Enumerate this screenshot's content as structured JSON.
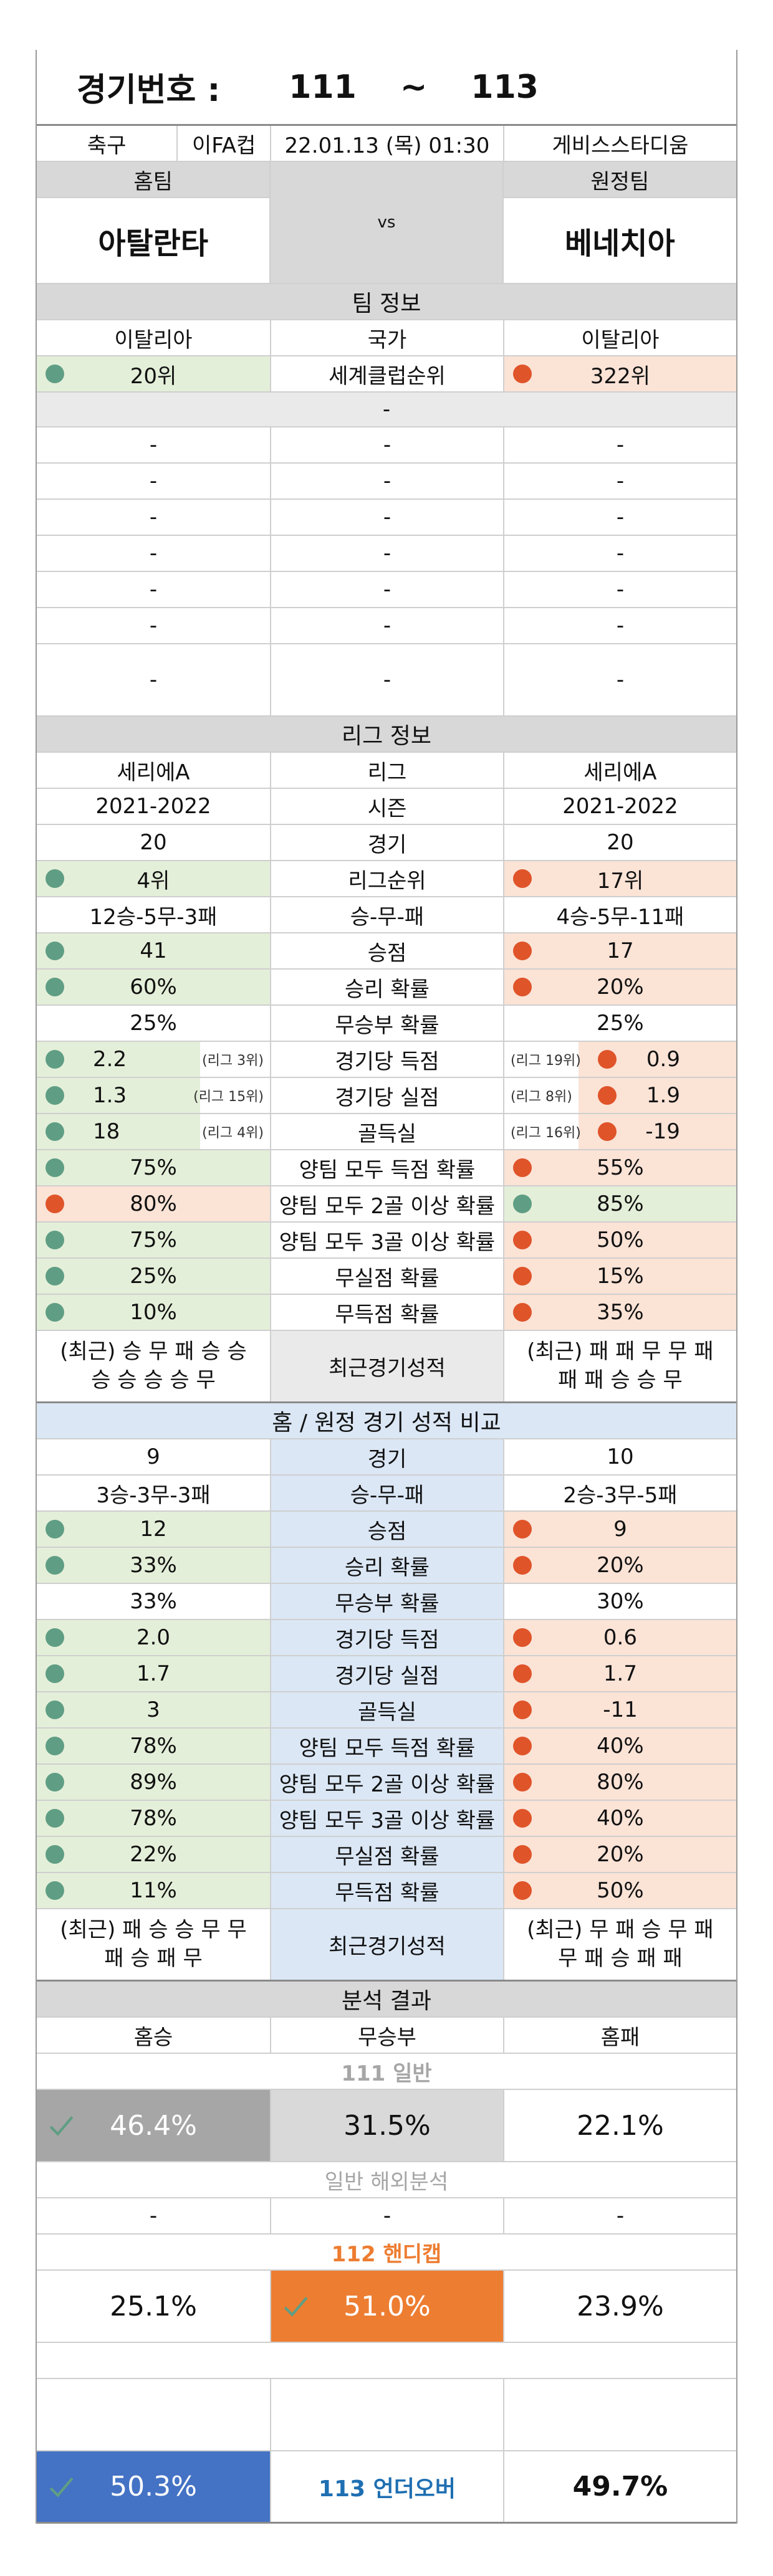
{
  "header": {
    "label": "경기번호 :",
    "from": "111",
    "sep": "~",
    "to": "113"
  },
  "match": {
    "sport": "축구",
    "league": "이FA컵",
    "datetime": "22.01.13 (목) 01:30",
    "stadium": "게비스스타디움"
  },
  "teams": {
    "home_label": "홈팀",
    "away_label": "원정팀",
    "home": "아탈란타",
    "vs": "vs",
    "away": "베네치아"
  },
  "team_info": {
    "title": "팀 정보",
    "country": {
      "home": "이탈리아",
      "label": "국가",
      "away": "이탈리아"
    },
    "club_rank": {
      "home": "20위",
      "label": "세계클럽순위",
      "away": "322위"
    },
    "dash": "-"
  },
  "league_info": {
    "title": "리그 정보",
    "league": {
      "home": "세리에A",
      "label": "리그",
      "away": "세리에A"
    },
    "season": {
      "home": "2021-2022",
      "label": "시즌",
      "away": "2021-2022"
    },
    "games": {
      "home": "20",
      "label": "경기",
      "away": "20"
    },
    "rank": {
      "home": "4위",
      "label": "리그순위",
      "away": "17위"
    },
    "record": {
      "home": "12승-5무-3패",
      "label": "승-무-패",
      "away": "4승-5무-11패"
    },
    "points": {
      "home": "41",
      "label": "승점",
      "away": "17"
    },
    "win_rate": {
      "home": "60%",
      "label": "승리 확률",
      "away": "20%"
    },
    "draw_rate": {
      "home": "25%",
      "label": "무승부 확률",
      "away": "25%"
    },
    "gf": {
      "home": "2.2",
      "home_sub": "(리그 3위)",
      "label": "경기당 득점",
      "away_sub": "(리그 19위)",
      "away": "0.9"
    },
    "ga": {
      "home": "1.3",
      "home_sub": "(리그 15위)",
      "label": "경기당 실점",
      "away_sub": "(리그 8위)",
      "away": "1.9"
    },
    "gd": {
      "home": "18",
      "home_sub": "(리그 4위)",
      "label": "골득실",
      "away_sub": "(리그 16위)",
      "away": "-19"
    },
    "btts": {
      "home": "75%",
      "label": "양팀 모두 득점 확률",
      "away": "55%"
    },
    "btts2": {
      "home": "80%",
      "label": "양팀 모두 2골 이상 확률",
      "away": "85%"
    },
    "btts3": {
      "home": "75%",
      "label": "양팀 모두 3골 이상 확률",
      "away": "50%"
    },
    "clean": {
      "home": "25%",
      "label": "무실점 확률",
      "away": "15%"
    },
    "noscore": {
      "home": "10%",
      "label": "무득점 확률",
      "away": "35%"
    },
    "recent": {
      "home_1": "(최근) 승 무 패 승 승",
      "home_2": "승 승 승 승 무",
      "label": "최근경기성적",
      "away_1": "(최근) 패 패 무 무 패",
      "away_2": "패 패 승 승 무"
    }
  },
  "venue_info": {
    "title": "홈 / 원정 경기 성적 비교",
    "games": {
      "home": "9",
      "label": "경기",
      "away": "10"
    },
    "record": {
      "home": "3승-3무-3패",
      "label": "승-무-패",
      "away": "2승-3무-5패"
    },
    "points": {
      "home": "12",
      "label": "승점",
      "away": "9"
    },
    "win_rate": {
      "home": "33%",
      "label": "승리 확률",
      "away": "20%"
    },
    "draw_rate": {
      "home": "33%",
      "label": "무승부 확률",
      "away": "30%"
    },
    "gf": {
      "home": "2.0",
      "label": "경기당 득점",
      "away": "0.6"
    },
    "ga": {
      "home": "1.7",
      "label": "경기당 실점",
      "away": "1.7"
    },
    "gd": {
      "home": "3",
      "label": "골득실",
      "away": "-11"
    },
    "btts": {
      "home": "78%",
      "label": "양팀 모두 득점 확률",
      "away": "40%"
    },
    "btts2": {
      "home": "89%",
      "label": "양팀 모두 2골 이상 확률",
      "away": "80%"
    },
    "btts3": {
      "home": "78%",
      "label": "양팀 모두 3골 이상 확률",
      "away": "40%"
    },
    "clean": {
      "home": "22%",
      "label": "무실점 확률",
      "away": "20%"
    },
    "noscore": {
      "home": "11%",
      "label": "무득점 확률",
      "away": "50%"
    },
    "recent": {
      "home_1": "(최근) 패 승 승 무 무",
      "home_2": "패 승 패 무",
      "label": "최근경기성적",
      "away_1": "(최근) 무 패 승 무 패",
      "away_2": "무 패 승 패 패"
    }
  },
  "analysis": {
    "title": "분석 결과",
    "col_home": "홈승",
    "col_draw": "무승부",
    "col_away": "홈패",
    "g111_label": "111 일반",
    "g111": {
      "home": "46.4%",
      "draw": "31.5%",
      "away": "22.1%"
    },
    "overseas_label": "일반 해외분석",
    "overseas": {
      "home": "-",
      "draw": "-",
      "away": "-"
    },
    "g112_label": "112 핸디캡",
    "g112": {
      "home": "25.1%",
      "draw": "51.0%",
      "away": "23.9%"
    },
    "g113": {
      "under": "50.3%",
      "label": "113 언더오버",
      "over": "49.7%"
    }
  },
  "colors": {
    "green_dot": "#5f9e84",
    "orange_dot": "#e0542a",
    "accent_orange": "#ed7d31",
    "accent_blue": "#4472c4",
    "title_blue": "#1f6fb2"
  }
}
